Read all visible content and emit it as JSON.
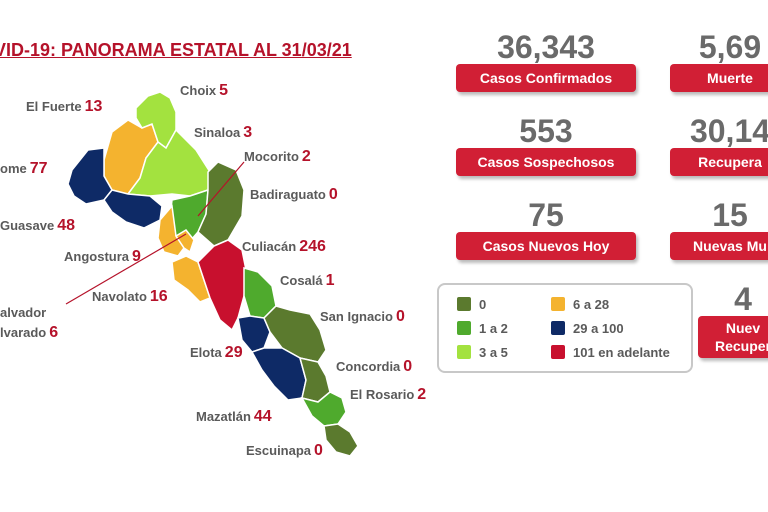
{
  "title": "VID-19: PANORAMA ESTATAL AL 31/03/21",
  "stats": {
    "confirmados": {
      "value": "36,343",
      "label": "Casos Confirmados"
    },
    "muertes": {
      "value": "5,69",
      "label": "Muerte"
    },
    "sospechosos": {
      "value": "553",
      "label": "Casos Sospechosos"
    },
    "recuperados": {
      "value": "30,14",
      "label": "Recupera"
    },
    "nuevos_hoy": {
      "value": "75",
      "label": "Casos Nuevos Hoy"
    },
    "nuevas_muertes": {
      "value": "15",
      "label": "Nuevas Mu"
    },
    "nuevos_recuperados": {
      "value": "4",
      "label_line1": "Nuev",
      "label_line2": "Recuper"
    }
  },
  "legend": [
    {
      "label": "0",
      "color": "#5b7a2e"
    },
    {
      "label": "1 a 2",
      "color": "#4faa2d"
    },
    {
      "label": "3 a 5",
      "color": "#a3e23f"
    },
    {
      "label": "6 a 28",
      "color": "#f4b32f"
    },
    {
      "label": "29 a 100",
      "color": "#0e2a66"
    },
    {
      "label": "101 en adelante",
      "color": "#c8102e"
    }
  ],
  "municipios": [
    {
      "name": "Choix",
      "value": "5"
    },
    {
      "name": "El Fuerte",
      "value": "13"
    },
    {
      "name": "Sinaloa",
      "value": "3"
    },
    {
      "name": "ome",
      "value": "77"
    },
    {
      "name": "Mocorito",
      "value": "2"
    },
    {
      "name": "Badiraguato",
      "value": "0"
    },
    {
      "name": "Guasave",
      "value": "48"
    },
    {
      "name": "Angostura",
      "value": "9"
    },
    {
      "name": "Culiacán",
      "value": "246"
    },
    {
      "name": "Cosalá",
      "value": "1"
    },
    {
      "name": "alvador",
      "value": ""
    },
    {
      "name": "lvarado",
      "value": "6"
    },
    {
      "name": "Navolato",
      "value": "16"
    },
    {
      "name": "San Ignacio",
      "value": "0"
    },
    {
      "name": "Elota",
      "value": "29"
    },
    {
      "name": "Concordia",
      "value": "0"
    },
    {
      "name": "El Rosario",
      "value": "2"
    },
    {
      "name": "Mazatlán",
      "value": "44"
    },
    {
      "name": "Escuinapa",
      "value": "0"
    }
  ]
}
